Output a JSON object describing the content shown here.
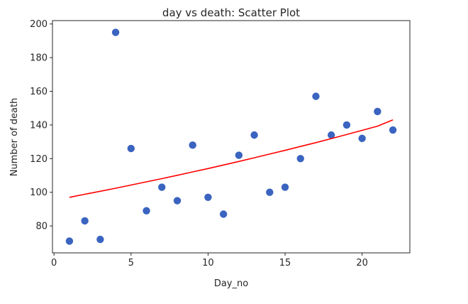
{
  "chart_data": {
    "type": "scatter",
    "title": "day vs death: Scatter Plot",
    "xlabel": "Day_no",
    "ylabel": "Number of death",
    "xlim": [
      -0.1,
      23.1
    ],
    "ylim": [
      64,
      202
    ],
    "xticks": [
      0,
      5,
      10,
      15,
      20
    ],
    "yticks": [
      80,
      100,
      120,
      140,
      160,
      180,
      200
    ],
    "grid": false,
    "point_color": "#3a64c0",
    "line_color": "#ff0000",
    "points": {
      "x": [
        1,
        2,
        3,
        4,
        5,
        6,
        7,
        8,
        9,
        10,
        11,
        12,
        13,
        14,
        15,
        16,
        17,
        18,
        19,
        20,
        21,
        22
      ],
      "y": [
        71,
        83,
        72,
        195,
        126,
        89,
        103,
        95,
        128,
        97,
        87,
        122,
        134,
        100,
        103,
        120,
        157,
        134,
        140,
        132,
        148,
        137
      ]
    },
    "fit_line": {
      "x": [
        1,
        2,
        3,
        4,
        5,
        6,
        7,
        8,
        9,
        10,
        11,
        12,
        13,
        14,
        15,
        16,
        17,
        18,
        19,
        20,
        21,
        22
      ],
      "y": [
        97,
        98.8,
        100.6,
        102.4,
        104.3,
        106.2,
        108.1,
        110.1,
        112.1,
        114.1,
        116.2,
        118.3,
        120.5,
        122.7,
        124.9,
        127.2,
        129.5,
        131.9,
        134.3,
        136.8,
        139.3,
        143
      ]
    }
  }
}
